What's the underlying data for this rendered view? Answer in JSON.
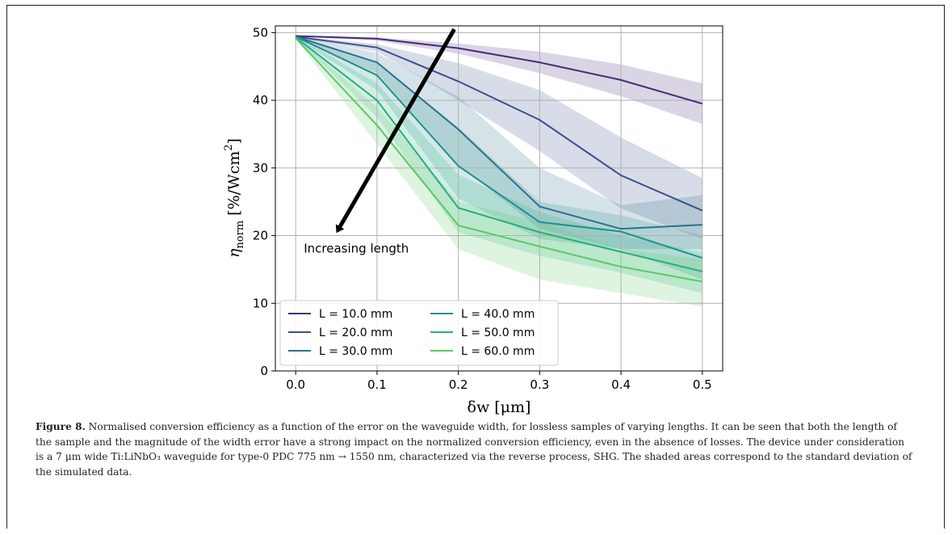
{
  "chart_data": {
    "type": "line",
    "title": "",
    "xlabel": "δw [μm]",
    "ylabel": "η_norm [%/Wcm²]",
    "ylabel_parts": {
      "symbol": "η",
      "subscript": "norm",
      "unit": "[%/Wcm",
      "unit_sup": "2",
      "unit_close": "]"
    },
    "xlim": [
      -0.025,
      0.525
    ],
    "ylim": [
      0,
      51
    ],
    "x": [
      0,
      0.1,
      0.2,
      0.3,
      0.4,
      0.5
    ],
    "xticks": [
      0.0,
      0.1,
      0.2,
      0.3,
      0.4,
      0.5
    ],
    "xtick_labels": [
      "0.0",
      "0.1",
      "0.2",
      "0.3",
      "0.4",
      "0.5"
    ],
    "yticks": [
      0,
      10,
      20,
      30,
      40,
      50
    ],
    "ytick_labels": [
      "0",
      "10",
      "20",
      "30",
      "40",
      "50"
    ],
    "grid": true,
    "legend_placement": "lower-left",
    "series": [
      {
        "name": "L = 10.0 mm",
        "color": "#472c7a",
        "values": [
          49.5,
          49.1,
          47.7,
          45.6,
          43.0,
          39.5
        ],
        "upper": [
          49.6,
          49.3,
          48.4,
          47.2,
          45.3,
          42.5
        ],
        "lower": [
          49.4,
          48.8,
          46.9,
          44.0,
          40.6,
          36.5
        ]
      },
      {
        "name": "L = 20.0 mm",
        "color": "#3b518b",
        "values": [
          49.4,
          47.8,
          42.8,
          37.1,
          28.9,
          23.7
        ],
        "upper": [
          49.5,
          48.3,
          45.5,
          41.5,
          34.5,
          28.5
        ],
        "lower": [
          49.3,
          47.2,
          40.0,
          32.5,
          24.0,
          19.5
        ]
      },
      {
        "name": "L = 30.0 mm",
        "color": "#2c718e",
        "values": [
          49.4,
          45.6,
          35.7,
          24.3,
          21.0,
          21.6
        ],
        "upper": [
          49.5,
          47.0,
          40.5,
          30.0,
          24.5,
          26.0
        ],
        "lower": [
          49.2,
          44.0,
          30.5,
          21.0,
          18.0,
          18.0
        ]
      },
      {
        "name": "L = 40.0 mm",
        "color": "#21908d",
        "values": [
          49.4,
          43.7,
          30.3,
          22.0,
          20.6,
          16.7
        ],
        "upper": [
          49.5,
          45.5,
          36.0,
          25.0,
          23.0,
          20.0
        ],
        "lower": [
          49.2,
          41.5,
          25.5,
          19.5,
          18.0,
          13.5
        ]
      },
      {
        "name": "L = 50.0 mm",
        "color": "#27ad81",
        "values": [
          49.3,
          40.0,
          24.1,
          20.5,
          17.6,
          14.7
        ],
        "upper": [
          49.5,
          42.5,
          29.0,
          23.5,
          20.0,
          17.5
        ],
        "lower": [
          49.1,
          37.5,
          20.5,
          17.0,
          14.5,
          11.5
        ]
      },
      {
        "name": "L = 60.0 mm",
        "color": "#5cc863",
        "values": [
          49.2,
          36.3,
          21.5,
          18.4,
          15.4,
          13.2
        ],
        "upper": [
          49.4,
          39.0,
          25.0,
          22.0,
          18.0,
          16.5
        ],
        "lower": [
          49.0,
          33.5,
          18.0,
          13.5,
          11.5,
          9.5
        ]
      }
    ],
    "band_note": "",
    "annotations": [
      {
        "text": "Increasing length",
        "arrow_from": [
          0.195,
          50.5
        ],
        "arrow_to": [
          0.05,
          20.4
        ],
        "text_at": [
          0.01,
          17.5
        ]
      }
    ]
  },
  "caption": {
    "label": "Figure 8.",
    "text": " Normalised conversion efficiency as a function of the error on the waveguide width, for lossless samples of varying lengths. It can be seen that both the length of the sample and the magnitude of the width error have a strong impact on the normalized conversion efficiency, even in the absence of losses. The device under consideration is a 7 μm wide Ti:LiNbO₃ waveguide for type-0 PDC 775 nm → 1550 nm, characterized via the reverse process, SHG. The shaded areas correspond to the standard deviation of the simulated data."
  }
}
